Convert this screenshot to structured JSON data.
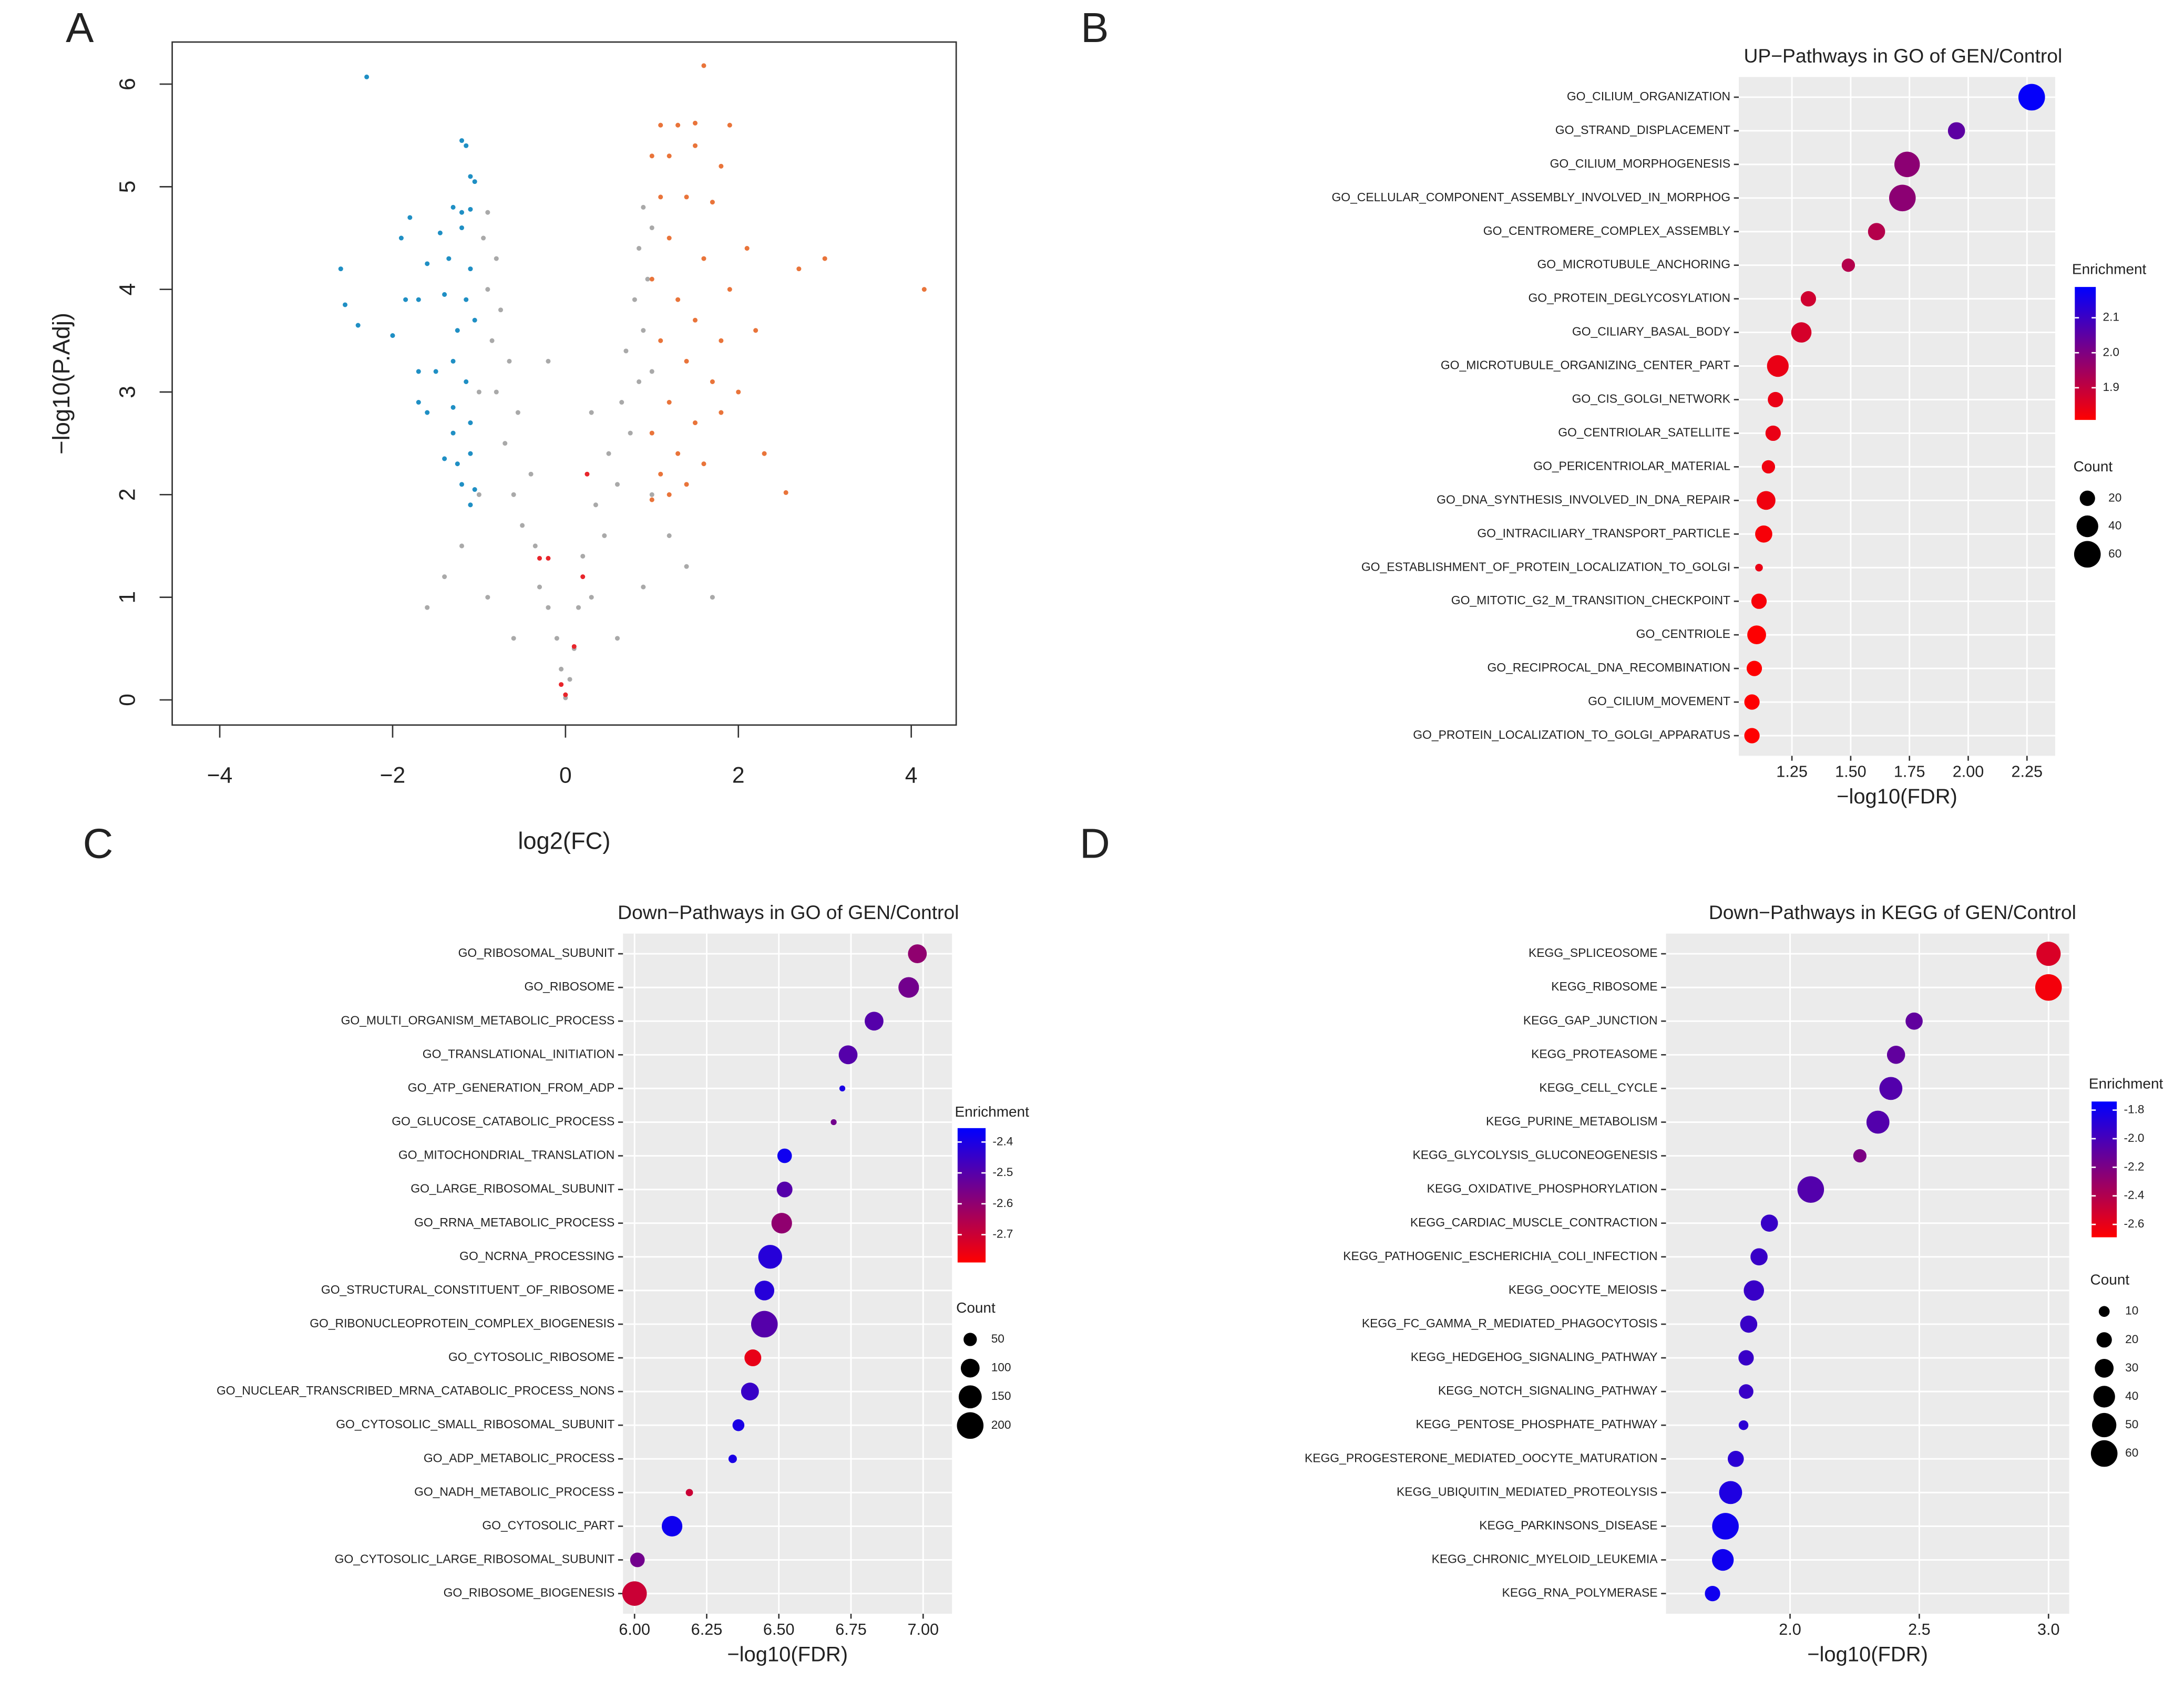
{
  "chart_data": [
    {
      "type": "scatter",
      "panel_label": "A",
      "x_label": "log2(FC)",
      "y_label": "−log10(P.Adj)",
      "xlim": [
        -4.55,
        4.52
      ],
      "ylim": [
        -0.245,
        6.41
      ],
      "xticks": [
        {
          "value": -4,
          "label": "−4"
        },
        {
          "value": -2,
          "label": "−2"
        },
        0,
        2,
        4
      ],
      "yticks": [
        0,
        1,
        2,
        3,
        4,
        5,
        6
      ],
      "series": [
        {
          "color": "#a9a9a9",
          "x": [
            0,
            0.05,
            -0.05,
            0.1,
            -0.1,
            0.15,
            -0.2,
            0.3,
            -0.3,
            0.2,
            -0.35,
            0.45,
            -0.5,
            0.35,
            -0.6,
            0.6,
            -0.4,
            0.5,
            -0.7,
            0.75,
            -0.55,
            0.65,
            -0.8,
            0.85,
            -0.65,
            0.7,
            -0.85,
            0.9,
            -0.75,
            0.8,
            -0.9,
            0.95,
            -0.8,
            0.85,
            -0.95,
            1.0,
            -0.9,
            0.9,
            -1.0,
            1.0,
            -1.2,
            1.2,
            -1.4,
            1.4,
            -0.9,
            0.9,
            -1.6,
            1.7,
            -0.6,
            0.6,
            -1.0,
            1.0,
            -0.2,
            0.3
          ],
          "values": [
            0.02,
            0.2,
            0.3,
            0.5,
            0.6,
            0.9,
            0.9,
            1.0,
            1.1,
            1.4,
            1.5,
            1.6,
            1.7,
            1.9,
            2.0,
            2.1,
            2.2,
            2.4,
            2.5,
            2.6,
            2.8,
            2.9,
            3.0,
            3.1,
            3.3,
            3.4,
            3.5,
            3.6,
            3.8,
            3.9,
            4.0,
            4.1,
            4.3,
            4.4,
            4.5,
            4.6,
            4.75,
            4.8,
            2.0,
            2.0,
            1.5,
            1.6,
            1.2,
            1.3,
            1.0,
            1.1,
            0.9,
            1.0,
            0.6,
            0.6,
            3.0,
            3.2,
            3.3,
            2.8
          ]
        },
        {
          "color": "#1f8fc4",
          "x": [
            -2.3,
            -1.2,
            -1.15,
            -1.1,
            -1.05,
            -1.3,
            -1.2,
            -1.1,
            -1.8,
            -1.9,
            -1.45,
            -1.2,
            -2.6,
            -1.6,
            -1.35,
            -1.1,
            -2.55,
            -1.85,
            -1.7,
            -1.4,
            -1.15,
            -2.4,
            -2.0,
            -1.25,
            -1.05,
            -1.7,
            -1.5,
            -1.3,
            -1.15,
            -1.7,
            -1.6,
            -1.3,
            -1.1,
            -1.4,
            -1.25,
            -1.1,
            -1.2,
            -1.05,
            -1.3,
            -1.1
          ],
          "values": [
            6.07,
            5.45,
            5.4,
            5.1,
            5.05,
            4.8,
            4.75,
            4.78,
            4.7,
            4.5,
            4.55,
            4.6,
            4.2,
            4.25,
            4.3,
            4.2,
            3.85,
            3.9,
            3.9,
            3.95,
            3.9,
            3.65,
            3.55,
            3.6,
            3.7,
            3.2,
            3.2,
            3.3,
            3.1,
            2.9,
            2.8,
            2.85,
            2.7,
            2.35,
            2.3,
            2.4,
            2.1,
            2.05,
            2.6,
            1.9
          ]
        },
        {
          "color": "#e9743a",
          "x": [
            1.6,
            1.1,
            1.3,
            1.5,
            1.9,
            1.0,
            1.2,
            1.5,
            1.8,
            1.1,
            1.4,
            1.7,
            2.1,
            2.7,
            3.0,
            4.15,
            1.2,
            1.6,
            1.9,
            1.0,
            1.3,
            1.5,
            1.8,
            2.2,
            1.1,
            1.4,
            1.7,
            2.0,
            1.2,
            1.5,
            1.0,
            1.3,
            1.6,
            1.1,
            1.4,
            2.3,
            2.55,
            1.0,
            1.2,
            1.8
          ],
          "values": [
            6.18,
            5.6,
            5.6,
            5.62,
            5.6,
            5.3,
            5.3,
            5.4,
            5.2,
            4.9,
            4.9,
            4.85,
            4.4,
            4.2,
            4.3,
            4.0,
            4.5,
            4.3,
            4.0,
            4.1,
            3.9,
            3.7,
            3.5,
            3.6,
            3.5,
            3.3,
            3.1,
            3.0,
            2.9,
            2.7,
            2.6,
            2.4,
            2.3,
            2.2,
            2.1,
            2.4,
            2.02,
            1.95,
            2.0,
            2.8
          ]
        },
        {
          "color": "#e8252b",
          "x": [
            0.25,
            -0.3,
            -0.2,
            0.2,
            0.1,
            -0.05,
            0
          ],
          "values": [
            2.2,
            1.38,
            1.38,
            1.2,
            0.52,
            0.15,
            0.05
          ]
        }
      ]
    },
    {
      "type": "bubble",
      "panel_label": "B",
      "title": "UP−Pathways in GO of GEN/Control",
      "x_label": "−log10(FDR)",
      "xlim": [
        1.024,
        2.37
      ],
      "xticks": [
        1.25,
        {
          "value": 1.5,
          "label": "1.50"
        },
        1.75,
        {
          "value": 2.0,
          "label": "2.00"
        },
        2.25
      ],
      "categories": [
        "GO_CILIUM_ORGANIZATION",
        "GO_STRAND_DISPLACEMENT",
        "GO_CILIUM_MORPHOGENESIS",
        "GO_CELLULAR_COMPONENT_ASSEMBLY_INVOLVED_IN_MORPHOG",
        "GO_CENTROMERE_COMPLEX_ASSEMBLY",
        "GO_MICROTUBULE_ANCHORING",
        "GO_PROTEIN_DEGLYCOSYLATION",
        "GO_CILIARY_BASAL_BODY",
        "GO_MICROTUBULE_ORGANIZING_CENTER_PART",
        "GO_CIS_GOLGI_NETWORK",
        "GO_CENTRIOLAR_SATELLITE",
        "GO_PERICENTRIOLAR_MATERIAL",
        "GO_DNA_SYNTHESIS_INVOLVED_IN_DNA_REPAIR",
        "GO_INTRACILIARY_TRANSPORT_PARTICLE",
        "GO_ESTABLISHMENT_OF_PROTEIN_LOCALIZATION_TO_GOLGI",
        "GO_MITOTIC_G2_M_TRANSITION_CHECKPOINT",
        "GO_CENTRIOLE",
        "GO_RECIPROCAL_DNA_RECOMBINATION",
        "GO_CILIUM_MOVEMENT",
        "GO_PROTEIN_LOCALIZATION_TO_GOLGI_APPARATUS"
      ],
      "values": [
        2.27,
        1.95,
        1.74,
        1.72,
        1.61,
        1.49,
        1.32,
        1.29,
        1.19,
        1.18,
        1.17,
        1.15,
        1.14,
        1.13,
        1.11,
        1.11,
        1.1,
        1.09,
        1.08,
        1.08
      ],
      "size_values": [
        60,
        25,
        55,
        60,
        25,
        15,
        20,
        35,
        40,
        20,
        20,
        15,
        30,
        25,
        5,
        20,
        30,
        20,
        20,
        20
      ],
      "color_values": [
        2.18,
        2.05,
        1.98,
        1.98,
        1.92,
        1.92,
        1.88,
        1.87,
        1.84,
        1.84,
        1.84,
        1.83,
        1.83,
        1.82,
        1.84,
        1.82,
        1.81,
        1.81,
        1.81,
        1.81
      ],
      "color_title": "Enrichment",
      "colorlim": [
        1.808,
        2.188
      ],
      "color_ticks": [
        2.1,
        {
          "value": 2.0,
          "label": "2.0"
        },
        1.9
      ],
      "color_low": "#ff0000",
      "color_high": "#0000ff",
      "size_title": "Count",
      "size_ticks": [
        20,
        40,
        60
      ]
    },
    {
      "type": "bubble",
      "panel_label": "C",
      "title": "Down−Pathways in GO of GEN/Control",
      "x_label": "−log10(FDR)",
      "xlim": [
        5.96,
        7.1
      ],
      "xticks": [
        {
          "value": 6.0,
          "label": "6.00"
        },
        6.25,
        {
          "value": 6.5,
          "label": "6.50"
        },
        6.75,
        {
          "value": 7.0,
          "label": "7.00"
        }
      ],
      "categories": [
        "GO_RIBOSOMAL_SUBUNIT",
        "GO_RIBOSOME",
        "GO_MULTI_ORGANISM_METABOLIC_PROCESS",
        "GO_TRANSLATIONAL_INITIATION",
        "GO_ATP_GENERATION_FROM_ADP",
        "GO_GLUCOSE_CATABOLIC_PROCESS",
        "GO_MITOCHONDRIAL_TRANSLATION",
        "GO_LARGE_RIBOSOMAL_SUBUNIT",
        "GO_RRNA_METABOLIC_PROCESS",
        "GO_NCRNA_PROCESSING",
        "GO_STRUCTURAL_CONSTITUENT_OF_RIBOSOME",
        "GO_RIBONUCLEOPROTEIN_COMPLEX_BIOGENESIS",
        "GO_CYTOSOLIC_RIBOSOME",
        "GO_NUCLEAR_TRANSCRIBED_MRNA_CATABOLIC_PROCESS_NONS",
        "GO_CYTOSOLIC_SMALL_RIBOSOMAL_SUBUNIT",
        "GO_ADP_METABOLIC_PROCESS",
        "GO_NADH_METABOLIC_PROCESS",
        "GO_CYTOSOLIC_PART",
        "GO_CYTOSOLIC_LARGE_RIBOSOMAL_SUBUNIT",
        "GO_RIBOSOME_BIOGENESIS"
      ],
      "values": [
        6.98,
        6.95,
        6.83,
        6.74,
        6.72,
        6.69,
        6.52,
        6.52,
        6.51,
        6.47,
        6.45,
        6.45,
        6.41,
        6.4,
        6.36,
        6.34,
        6.19,
        6.13,
        6.01,
        6.0
      ],
      "size_values": [
        100,
        120,
        100,
        100,
        10,
        10,
        60,
        70,
        120,
        160,
        110,
        200,
        80,
        90,
        40,
        20,
        15,
        120,
        60,
        170
      ],
      "color_values": [
        -2.6,
        -2.55,
        -2.5,
        -2.5,
        -2.4,
        -2.55,
        -2.38,
        -2.5,
        -2.6,
        -2.42,
        -2.42,
        -2.5,
        -2.75,
        -2.45,
        -2.4,
        -2.4,
        -2.7,
        -2.38,
        -2.55,
        -2.7
      ],
      "color_title": "Enrichment",
      "colorlim": [
        -2.79,
        -2.355
      ],
      "color_ticks": [
        -2.4,
        -2.5,
        -2.6,
        -2.7
      ],
      "color_low": "#ff0000",
      "color_high": "#0000ff",
      "size_title": "Count",
      "size_ticks": [
        50,
        100,
        150,
        200
      ]
    },
    {
      "type": "bubble",
      "panel_label": "D",
      "title": "Down−Pathways in KEGG of GEN/Control",
      "x_label": "−log10(FDR)",
      "xlim": [
        1.52,
        3.08
      ],
      "xticks": [
        {
          "value": 2.0,
          "label": "2.0"
        },
        2.5,
        {
          "value": 3.0,
          "label": "3.0"
        }
      ],
      "categories": [
        "KEGG_SPLICEOSOME",
        "KEGG_RIBOSOME",
        "KEGG_GAP_JUNCTION",
        "KEGG_PROTEASOME",
        "KEGG_CELL_CYCLE",
        "KEGG_PURINE_METABOLISM",
        "KEGG_GLYCOLYSIS_GLUCONEOGENESIS",
        "KEGG_OXIDATIVE_PHOSPHORYLATION",
        "KEGG_CARDIAC_MUSCLE_CONTRACTION",
        "KEGG_PATHOGENIC_ESCHERICHIA_COLI_INFECTION",
        "KEGG_OOCYTE_MEIOSIS",
        "KEGG_FC_GAMMA_R_MEDIATED_PHAGOCYTOSIS",
        "KEGG_HEDGEHOG_SIGNALING_PATHWAY",
        "KEGG_NOTCH_SIGNALING_PATHWAY",
        "KEGG_PENTOSE_PHOSPHATE_PATHWAY",
        "KEGG_PROGESTERONE_MEDIATED_OOCYTE_MATURATION",
        "KEGG_UBIQUITIN_MEDIATED_PROTEOLYSIS",
        "KEGG_PARKINSONS_DISEASE",
        "KEGG_CHRONIC_MYELOID_LEUKEMIA",
        "KEGG_RNA_POLYMERASE"
      ],
      "values": [
        3.0,
        3.0,
        2.48,
        2.41,
        2.39,
        2.34,
        2.27,
        2.08,
        1.92,
        1.88,
        1.86,
        1.84,
        1.83,
        1.83,
        1.82,
        1.79,
        1.77,
        1.75,
        1.74,
        1.7
      ],
      "size_values": [
        50,
        60,
        25,
        28,
        45,
        45,
        15,
        60,
        25,
        25,
        35,
        25,
        20,
        18,
        8,
        22,
        45,
        60,
        40,
        20
      ],
      "color_values": [
        -2.55,
        -2.65,
        -2.1,
        -2.1,
        -2.05,
        -2.05,
        -2.2,
        -2.05,
        -1.95,
        -1.95,
        -1.95,
        -1.95,
        -1.95,
        -1.95,
        -1.9,
        -1.9,
        -1.85,
        -1.8,
        -1.8,
        -1.8
      ],
      "color_title": "Enrichment",
      "colorlim": [
        -2.69,
        -1.74
      ],
      "color_ticks": [
        -1.8,
        {
          "value": -2.0,
          "label": "-2.0"
        },
        -2.2,
        -2.4,
        -2.6
      ],
      "color_low": "#ff0000",
      "color_high": "#0000ff",
      "size_title": "Count",
      "size_ticks": [
        10,
        20,
        30,
        40,
        50,
        60
      ]
    }
  ]
}
